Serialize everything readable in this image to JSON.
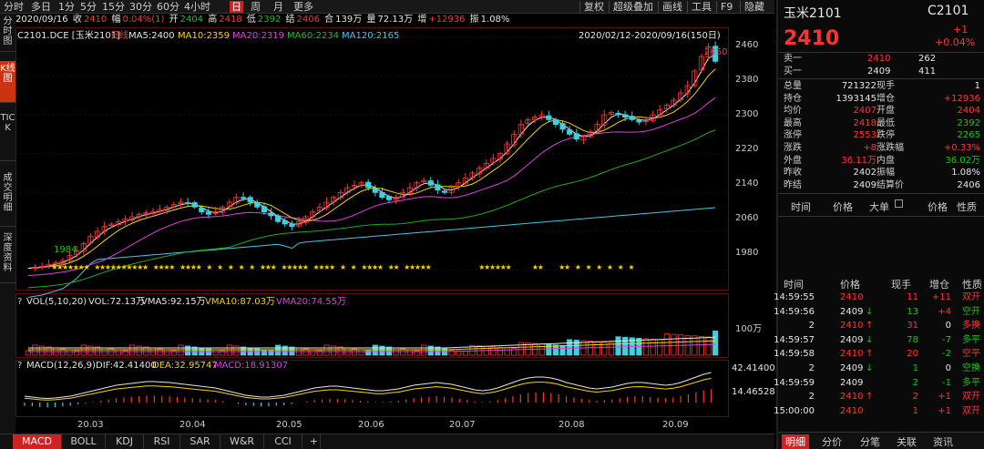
{
  "left_tabs": [
    "分时图",
    "K线图",
    "TICK",
    "成交明细",
    "深度资料"
  ],
  "left_tab_active": 1,
  "period_tabs": [
    "分时",
    "多日",
    "1分",
    "5分",
    "15分",
    "30分",
    "60分",
    "4小时",
    "日",
    "周",
    "月",
    "更多"
  ],
  "period_active": "日",
  "toolbar_right": [
    "复权",
    "超级叠加",
    "画线",
    "工具",
    "F9",
    "隐藏"
  ],
  "quote_bar": {
    "date": "2020/09/16",
    "close_label": "收",
    "close": "2410",
    "change_label": "幅",
    "change": "0.04%(1)",
    "open_label": "开",
    "open": "2404",
    "high_label": "高",
    "high": "2418",
    "low_label": "低",
    "low": "2392",
    "settle_label": "结",
    "settle": "2406",
    "amount_label": "合",
    "amount": "139万",
    "volume_label": "量",
    "volume": "72.13万",
    "oi_label": "增",
    "oi": "+12936",
    "amp_label": "振",
    "amp": "1.08%"
  },
  "ma_legend": {
    "code": "C2101.DCE [玉米2101]",
    "period": "日线",
    "ma5": "MA5:2400",
    "ma10": "MA10:2359",
    "ma20": "MA20:2319",
    "ma60": "MA60:2234",
    "ma120": "MA120:2165",
    "range": "2020/02/12-2020/09/16(150日)"
  },
  "price_axis": [
    "2460",
    "2380",
    "2300",
    "2220",
    "2140",
    "2060",
    "1980"
  ],
  "price_marks": {
    "high": "2450",
    "low": "1984"
  },
  "vol_legend": {
    "q": "?",
    "name": "VOL(5,10,20)",
    "vol": "VOL:72.13万",
    "ma5": "VMA5:92.15万",
    "ma10": "VMA10:87.03万",
    "ma20": "VMA20:74.55万"
  },
  "vol_axis": "100万",
  "macd_legend": {
    "q": "?",
    "name": "MACD(12,26,9)",
    "dif": "DIF:42.41400",
    "dea": "DEA:32.95747",
    "macd": "MACD:18.91307"
  },
  "macd_axis": [
    "42.41400",
    "14.46528"
  ],
  "date_axis": [
    "20.03",
    "20.04",
    "20.05",
    "20.06",
    "20.07",
    "20.08",
    "20.09"
  ],
  "indicator_tabs": [
    "MACD",
    "BOLL",
    "KDJ",
    "RSI",
    "SAR",
    "W&R",
    "CCI",
    "+"
  ],
  "indicator_active": "MACD",
  "colors": {
    "up": "#ff3333",
    "down": "#1fc01f",
    "ma5": "#e6e6e6",
    "ma10": "#f5d400",
    "ma20": "#e040e0",
    "ma60": "#1faa1f",
    "ma120": "#40c8e8",
    "star": "#f5d400"
  },
  "chart_data": {
    "type": "candlestick",
    "title": "C2101.DCE [玉米2101]",
    "ylim": [
      1940,
      2480
    ],
    "x_labels": [
      "20.03",
      "20.04",
      "20.05",
      "20.06",
      "20.07",
      "20.08",
      "20.09"
    ],
    "price_path": [
      1984,
      1986,
      1988,
      1992,
      1996,
      2000,
      2010,
      2020,
      2035,
      2050,
      2060,
      2070,
      2075,
      2080,
      2085,
      2090,
      2095,
      2098,
      2100,
      2105,
      2110,
      2115,
      2120,
      2118,
      2110,
      2100,
      2095,
      2100,
      2110,
      2120,
      2130,
      2128,
      2120,
      2110,
      2100,
      2092,
      2080,
      2075,
      2070,
      2080,
      2090,
      2100,
      2110,
      2120,
      2130,
      2140,
      2150,
      2155,
      2160,
      2150,
      2140,
      2130,
      2125,
      2130,
      2140,
      2150,
      2160,
      2165,
      2155,
      2145,
      2140,
      2150,
      2160,
      2170,
      2180,
      2190,
      2200,
      2210,
      2220,
      2240,
      2260,
      2280,
      2290,
      2295,
      2300,
      2290,
      2280,
      2270,
      2260,
      2250,
      2255,
      2265,
      2280,
      2300,
      2305,
      2300,
      2295,
      2290,
      2285,
      2290,
      2300,
      2310,
      2320,
      2330,
      2345,
      2360,
      2390,
      2420,
      2440,
      2410
    ],
    "macd_path": [
      -10,
      -12,
      -14,
      -15,
      -14,
      -12,
      -10,
      -6,
      -2,
      2,
      6,
      10,
      14,
      16,
      18,
      20,
      22,
      22,
      21,
      20,
      18,
      16,
      14,
      12,
      10,
      8,
      4,
      0,
      -4,
      -8,
      -10,
      -12,
      -12,
      -10,
      -8,
      -4,
      0,
      4,
      8,
      10,
      12,
      12,
      10,
      8,
      6,
      4,
      2,
      2,
      4,
      6,
      10,
      14,
      16,
      18,
      20,
      18,
      16,
      12,
      8,
      4,
      2,
      4,
      8,
      14,
      20,
      26,
      30,
      32,
      32,
      30,
      26,
      20,
      16,
      12,
      8,
      6,
      8,
      10,
      14,
      18,
      20,
      20,
      18,
      16,
      14,
      16,
      20,
      26,
      32,
      38,
      42
    ]
  },
  "right": {
    "name": "玉米2101",
    "code": "C2101",
    "price": "2410",
    "change": "+1",
    "change_pct": "+0.04%",
    "ask_label": "卖一",
    "ask": "2410",
    "ask_vol": "262",
    "bid_label": "买一",
    "bid": "2409",
    "bid_vol": "411",
    "stats": [
      {
        "l": "总量",
        "v": "721322",
        "l2": "现手",
        "v2": "1"
      },
      {
        "l": "持仓",
        "v": "1393145",
        "l2": "增仓",
        "v2": "+12936"
      },
      {
        "l": "均价",
        "v": "2407",
        "l2": "开盘",
        "v2": "2404"
      },
      {
        "l": "最高",
        "v": "2418",
        "l2": "最低",
        "v2": "2392"
      },
      {
        "l": "涨停",
        "v": "2553",
        "l2": "跌停",
        "v2": "2265"
      },
      {
        "l": "涨跌",
        "v": "+8",
        "l2": "涨跌幅",
        "v2": "+0.33%"
      },
      {
        "l": "外盘",
        "v": "36.11万",
        "l2": "内盘",
        "v2": "36.02万"
      },
      {
        "l": "昨收",
        "v": "2402",
        "l2": "振幅",
        "v2": "1.08%"
      },
      {
        "l": "昨结",
        "v": "2409",
        "l2": "结算价",
        "v2": "2406"
      }
    ],
    "tick_tabs": [
      "时间",
      "价格",
      "大单",
      "价格",
      "性质"
    ],
    "trade_header": [
      "时间",
      "价格",
      "现手",
      "增仓",
      "性质"
    ],
    "trades": [
      {
        "t": "14:59:55",
        "p": "2410",
        "a": "",
        "q": "11",
        "o": "+11",
        "n": "双开"
      },
      {
        "t": "14:59:56",
        "p": "2409",
        "a": "↓",
        "q": "13",
        "o": "+4",
        "n": "空开"
      },
      {
        "t": "2",
        "p": "2410",
        "a": "↑",
        "q": "31",
        "o": "0",
        "n": "多换"
      },
      {
        "t": "14:59:57",
        "p": "2409",
        "a": "↓",
        "q": "78",
        "o": "-7",
        "n": "多平"
      },
      {
        "t": "14:59:58",
        "p": "2410",
        "a": "↑",
        "q": "20",
        "o": "-2",
        "n": "空平"
      },
      {
        "t": "2",
        "p": "2409",
        "a": "↓",
        "q": "1",
        "o": "0",
        "n": "空换"
      },
      {
        "t": "14:59:59",
        "p": "2409",
        "a": "",
        "q": "2",
        "o": "-1",
        "n": "多平"
      },
      {
        "t": "2",
        "p": "2410",
        "a": "↑",
        "q": "2",
        "o": "+1",
        "n": "双开"
      },
      {
        "t": "15:00:00",
        "p": "2410",
        "a": "",
        "q": "1",
        "o": "+1",
        "n": "双开"
      }
    ],
    "bottom_tabs": [
      "明细",
      "分价",
      "分笔",
      "关联",
      "资讯"
    ]
  }
}
